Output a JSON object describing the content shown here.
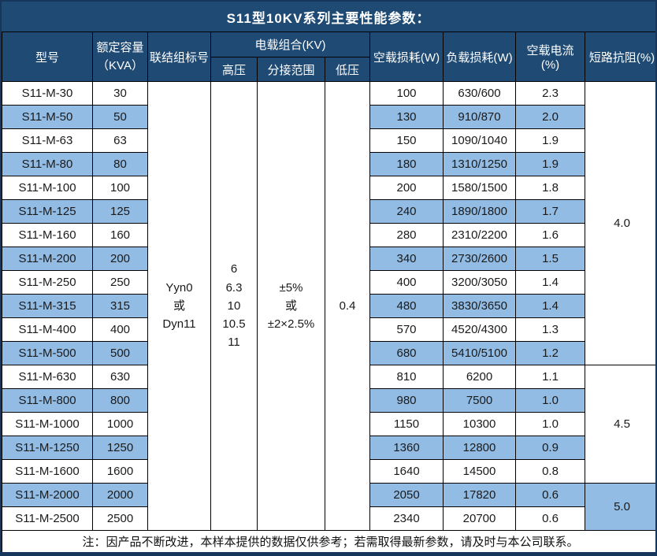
{
  "title": "S11型10KV系列主要性能参数：",
  "note": "注：因产品不断改进，本样本提供的数据仅供参考；若需取得最新参数，请及时与本公司联系。",
  "colors": {
    "header_bg": "#1F4A73",
    "stripe_bg": "#92BCE4",
    "border": "#000000",
    "header_text": "#FFFFFF"
  },
  "table": {
    "headers": {
      "model": "型号",
      "capacity": "额定容量\n（KVA）",
      "connection": "联结组标号",
      "load_combo": "电载组合(KV)",
      "high_voltage": "高压",
      "tap_range": "分接范围",
      "low_voltage": "低压",
      "no_load_loss": "空载损耗(W)",
      "load_loss": "负载损耗(W)",
      "no_load_current": "空载电流(%)",
      "impedance": "短路抗阻(%)"
    },
    "merged": {
      "connection": "Yyn0\n或\nDyn11",
      "high_voltage": "6\n6.3\n10\n10.5\n11",
      "tap_range": "±5%\n或\n±2×2.5%",
      "low_voltage": "0.4"
    },
    "impedance_groups": [
      {
        "value": "4.0",
        "rows": 12
      },
      {
        "value": "4.5",
        "rows": 5
      },
      {
        "value": "5.0",
        "rows": 2
      }
    ],
    "rows": [
      {
        "model": "S11-M-30",
        "capacity": "30",
        "no_load_loss": "100",
        "load_loss": "630/600",
        "no_load_current": "2.3"
      },
      {
        "model": "S11-M-50",
        "capacity": "50",
        "no_load_loss": "130",
        "load_loss": "910/870",
        "no_load_current": "2.0"
      },
      {
        "model": "S11-M-63",
        "capacity": "63",
        "no_load_loss": "150",
        "load_loss": "1090/1040",
        "no_load_current": "1.9"
      },
      {
        "model": "S11-M-80",
        "capacity": "80",
        "no_load_loss": "180",
        "load_loss": "1310/1250",
        "no_load_current": "1.9"
      },
      {
        "model": "S11-M-100",
        "capacity": "100",
        "no_load_loss": "200",
        "load_loss": "1580/1500",
        "no_load_current": "1.8"
      },
      {
        "model": "S11-M-125",
        "capacity": "125",
        "no_load_loss": "240",
        "load_loss": "1890/1800",
        "no_load_current": "1.7"
      },
      {
        "model": "S11-M-160",
        "capacity": "160",
        "no_load_loss": "280",
        "load_loss": "2310/2200",
        "no_load_current": "1.6"
      },
      {
        "model": "S11-M-200",
        "capacity": "200",
        "no_load_loss": "340",
        "load_loss": "2730/2600",
        "no_load_current": "1.5"
      },
      {
        "model": "S11-M-250",
        "capacity": "250",
        "no_load_loss": "400",
        "load_loss": "3200/3050",
        "no_load_current": "1.4"
      },
      {
        "model": "S11-M-315",
        "capacity": "315",
        "no_load_loss": "480",
        "load_loss": "3830/3650",
        "no_load_current": "1.4"
      },
      {
        "model": "S11-M-400",
        "capacity": "400",
        "no_load_loss": "570",
        "load_loss": "4520/4300",
        "no_load_current": "1.3"
      },
      {
        "model": "S11-M-500",
        "capacity": "500",
        "no_load_loss": "680",
        "load_loss": "5410/5100",
        "no_load_current": "1.2"
      },
      {
        "model": "S11-M-630",
        "capacity": "630",
        "no_load_loss": "810",
        "load_loss": "6200",
        "no_load_current": "1.1"
      },
      {
        "model": "S11-M-800",
        "capacity": "800",
        "no_load_loss": "980",
        "load_loss": "7500",
        "no_load_current": "1.0"
      },
      {
        "model": "S11-M-1000",
        "capacity": "1000",
        "no_load_loss": "1150",
        "load_loss": "10300",
        "no_load_current": "1.0"
      },
      {
        "model": "S11-M-1250",
        "capacity": "1250",
        "no_load_loss": "1360",
        "load_loss": "12800",
        "no_load_current": "0.9"
      },
      {
        "model": "S11-M-1600",
        "capacity": "1600",
        "no_load_loss": "1640",
        "load_loss": "14500",
        "no_load_current": "0.8"
      },
      {
        "model": "S11-M-2000",
        "capacity": "2000",
        "no_load_loss": "2050",
        "load_loss": "17820",
        "no_load_current": "0.6"
      },
      {
        "model": "S11-M-2500",
        "capacity": "2500",
        "no_load_loss": "2340",
        "load_loss": "20700",
        "no_load_current": "0.6"
      }
    ]
  }
}
